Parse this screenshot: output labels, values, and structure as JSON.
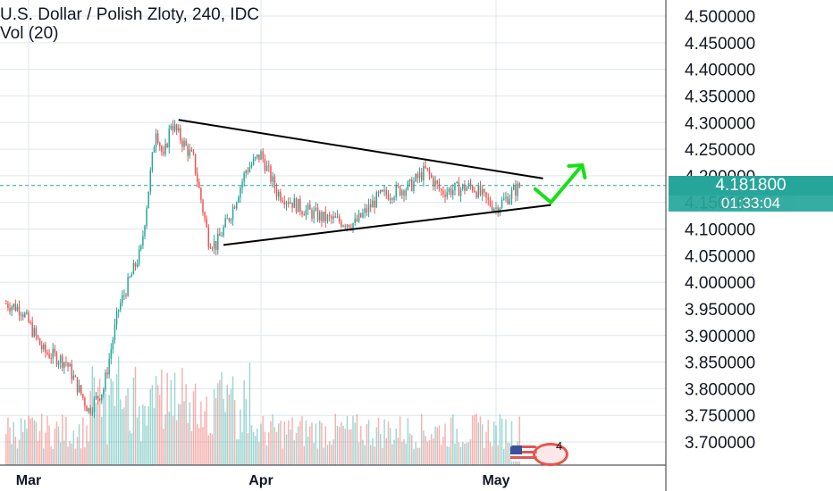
{
  "header": {
    "symbol_line": "U.S. Dollar / Polish Zloty, 240, IDC",
    "volume_line": "Vol (20)"
  },
  "price_axis": {
    "ticks": [
      "4.500000",
      "4.450000",
      "4.400000",
      "4.350000",
      "4.300000",
      "4.250000",
      "4.200000",
      "4.150000",
      "4.100000",
      "4.050000",
      "4.000000",
      "3.950000",
      "3.900000",
      "3.850000",
      "3.800000",
      "3.750000",
      "3.700000"
    ]
  },
  "time_axis": {
    "ticks": [
      "Mar",
      "Apr",
      "May"
    ]
  },
  "last_price": {
    "value": "4.181800",
    "countdown": "01:33:04"
  },
  "event_marker": {
    "text": "4"
  },
  "colors": {
    "up": "#26a69a",
    "down": "#ef5350",
    "trendline": "#000000",
    "arrow": "#16e016",
    "grid": "#dfe6ee"
  },
  "chart_data": {
    "type": "candlestick",
    "symbol": "U.S. Dollar / Polish Zloty",
    "interval": "240",
    "source": "IDC",
    "ylim": [
      3.68,
      4.52
    ],
    "x": [
      "Mar",
      "Apr",
      "May"
    ],
    "last_close": 4.1818,
    "price_path": [
      {
        "x": "Feb 26",
        "y": 3.96
      },
      {
        "x": "Feb 28",
        "y": 3.95
      },
      {
        "x": "Mar 3",
        "y": 3.87
      },
      {
        "x": "Mar 6",
        "y": 3.85
      },
      {
        "x": "Mar 9",
        "y": 3.76
      },
      {
        "x": "Mar 11",
        "y": 3.8
      },
      {
        "x": "Mar 13",
        "y": 3.95
      },
      {
        "x": "Mar 16",
        "y": 4.06
      },
      {
        "x": "Mar 18",
        "y": 4.29
      },
      {
        "x": "Mar 19",
        "y": 4.23
      },
      {
        "x": "Mar 20",
        "y": 4.3
      },
      {
        "x": "Mar 23",
        "y": 4.23
      },
      {
        "x": "Mar 25",
        "y": 4.08
      },
      {
        "x": "Mar 26",
        "y": 4.07
      },
      {
        "x": "Mar 28",
        "y": 4.13
      },
      {
        "x": "Mar 30",
        "y": 4.21
      },
      {
        "x": "Apr 1",
        "y": 4.24
      },
      {
        "x": "Apr 3",
        "y": 4.17
      },
      {
        "x": "Apr 6",
        "y": 4.14
      },
      {
        "x": "Apr 9",
        "y": 4.12
      },
      {
        "x": "Apr 13",
        "y": 4.11
      },
      {
        "x": "Apr 16",
        "y": 4.16
      },
      {
        "x": "Apr 20",
        "y": 4.18
      },
      {
        "x": "Apr 22",
        "y": 4.21
      },
      {
        "x": "Apr 24",
        "y": 4.17
      },
      {
        "x": "Apr 28",
        "y": 4.18
      },
      {
        "x": "Apr 30",
        "y": 4.15
      },
      {
        "x": "May 1",
        "y": 4.14
      },
      {
        "x": "May 4",
        "y": 4.18
      }
    ],
    "trendlines": [
      {
        "name": "upper",
        "from": {
          "x": "Mar 21",
          "y": 4.305
        },
        "to": {
          "x": "May 7",
          "y": 4.195
        }
      },
      {
        "name": "lower",
        "from": {
          "x": "Mar 27",
          "y": 4.07
        },
        "to": {
          "x": "May 8",
          "y": 4.145
        }
      }
    ],
    "volume": {
      "name": "Vol (20)"
    },
    "grid": true
  }
}
